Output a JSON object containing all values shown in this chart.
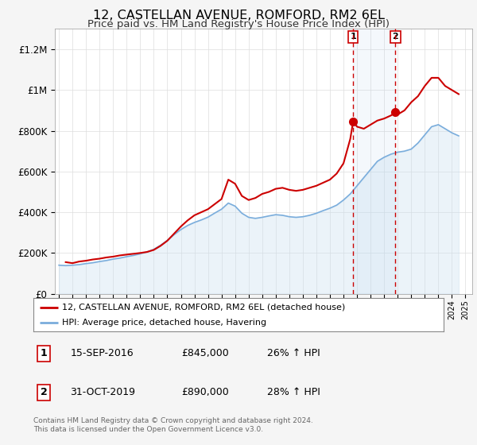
{
  "title": "12, CASTELLAN AVENUE, ROMFORD, RM2 6EL",
  "subtitle": "Price paid vs. HM Land Registry's House Price Index (HPI)",
  "title_fontsize": 11.5,
  "subtitle_fontsize": 9.5,
  "background_color": "#f5f5f5",
  "plot_bg_color": "#ffffff",
  "red_line_color": "#cc0000",
  "blue_line_color": "#7aaddc",
  "blue_fill_color": "#c8dff0",
  "grid_color": "#dddddd",
  "ylim": [
    0,
    1300000
  ],
  "yticks": [
    0,
    200000,
    400000,
    600000,
    800000,
    1000000,
    1200000
  ],
  "ytick_labels": [
    "£0",
    "£200K",
    "£400K",
    "£600K",
    "£800K",
    "£1M",
    "£1.2M"
  ],
  "legend_label_red": "12, CASTELLAN AVENUE, ROMFORD, RM2 6EL (detached house)",
  "legend_label_blue": "HPI: Average price, detached house, Havering",
  "sale1_date": "15-SEP-2016",
  "sale1_price": "£845,000",
  "sale1_hpi": "26% ↑ HPI",
  "sale1_year": 2016.71,
  "sale1_value": 845000,
  "sale2_date": "31-OCT-2019",
  "sale2_price": "£890,000",
  "sale2_hpi": "28% ↑ HPI",
  "sale2_year": 2019.83,
  "sale2_value": 890000,
  "footnote1": "Contains HM Land Registry data © Crown copyright and database right 2024.",
  "footnote2": "This data is licensed under the Open Government Licence v3.0.",
  "red_x": [
    1995.5,
    1996.0,
    1996.5,
    1997.0,
    1997.5,
    1998.0,
    1998.5,
    1999.0,
    1999.5,
    2000.0,
    2000.5,
    2001.0,
    2001.5,
    2002.0,
    2002.5,
    2003.0,
    2003.5,
    2004.0,
    2004.5,
    2005.0,
    2005.5,
    2006.0,
    2006.5,
    2007.0,
    2007.5,
    2008.0,
    2008.5,
    2009.0,
    2009.5,
    2010.0,
    2010.5,
    2011.0,
    2011.5,
    2012.0,
    2012.5,
    2013.0,
    2013.5,
    2014.0,
    2014.5,
    2015.0,
    2015.5,
    2016.0,
    2016.5,
    2016.71,
    2017.0,
    2017.5,
    2018.0,
    2018.5,
    2019.0,
    2019.5,
    2019.83,
    2020.0,
    2020.5,
    2021.0,
    2021.5,
    2022.0,
    2022.5,
    2023.0,
    2023.5,
    2024.0,
    2024.5
  ],
  "red_y": [
    155000,
    150000,
    158000,
    162000,
    168000,
    172000,
    178000,
    182000,
    188000,
    192000,
    196000,
    200000,
    205000,
    215000,
    235000,
    260000,
    295000,
    330000,
    360000,
    385000,
    400000,
    415000,
    440000,
    465000,
    560000,
    540000,
    480000,
    460000,
    470000,
    490000,
    500000,
    515000,
    520000,
    510000,
    505000,
    510000,
    520000,
    530000,
    545000,
    560000,
    590000,
    640000,
    760000,
    845000,
    820000,
    810000,
    830000,
    850000,
    860000,
    875000,
    890000,
    880000,
    900000,
    940000,
    970000,
    1020000,
    1060000,
    1060000,
    1020000,
    1000000,
    980000
  ],
  "blue_x": [
    1995.0,
    1995.5,
    1996.0,
    1996.5,
    1997.0,
    1997.5,
    1998.0,
    1998.5,
    1999.0,
    1999.5,
    2000.0,
    2000.5,
    2001.0,
    2001.5,
    2002.0,
    2002.5,
    2003.0,
    2003.5,
    2004.0,
    2004.5,
    2005.0,
    2005.5,
    2006.0,
    2006.5,
    2007.0,
    2007.5,
    2008.0,
    2008.5,
    2009.0,
    2009.5,
    2010.0,
    2010.5,
    2011.0,
    2011.5,
    2012.0,
    2012.5,
    2013.0,
    2013.5,
    2014.0,
    2014.5,
    2015.0,
    2015.5,
    2016.0,
    2016.5,
    2017.0,
    2017.5,
    2018.0,
    2018.5,
    2019.0,
    2019.5,
    2020.0,
    2020.5,
    2021.0,
    2021.5,
    2022.0,
    2022.5,
    2023.0,
    2023.5,
    2024.0,
    2024.5
  ],
  "blue_y": [
    140000,
    138000,
    140000,
    143000,
    148000,
    152000,
    158000,
    163000,
    170000,
    175000,
    182000,
    188000,
    196000,
    205000,
    218000,
    238000,
    262000,
    290000,
    315000,
    335000,
    350000,
    362000,
    376000,
    396000,
    415000,
    445000,
    430000,
    395000,
    375000,
    370000,
    375000,
    382000,
    388000,
    385000,
    378000,
    375000,
    378000,
    385000,
    395000,
    408000,
    420000,
    435000,
    460000,
    490000,
    530000,
    570000,
    610000,
    650000,
    670000,
    685000,
    695000,
    700000,
    710000,
    740000,
    780000,
    820000,
    830000,
    810000,
    790000,
    775000
  ]
}
